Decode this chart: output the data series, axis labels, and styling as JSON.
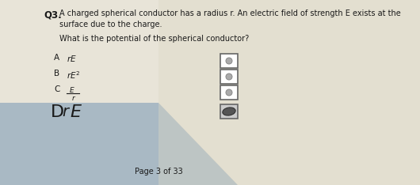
{
  "background_top_color": "#e8e4d8",
  "background_bottom_left": "#b0bcc8",
  "q_number": "Q3.",
  "desc_line1": "A charged spherical conductor has a radius r. An electric field of strength E exists at the",
  "desc_line2": "surface due to the charge.",
  "question": "What is the potential of the spherical conductor?",
  "options": [
    {
      "label": "A",
      "checked": false
    },
    {
      "label": "B",
      "checked": false
    },
    {
      "label": "C",
      "checked": false
    },
    {
      "label": "D",
      "checked": true
    }
  ],
  "page_text": "Page 3 of 33",
  "text_color": "#1a1a1a",
  "box_edge_color": "#666666",
  "box_fill": "#ffffff",
  "checked_box_fill": "#cccccc"
}
